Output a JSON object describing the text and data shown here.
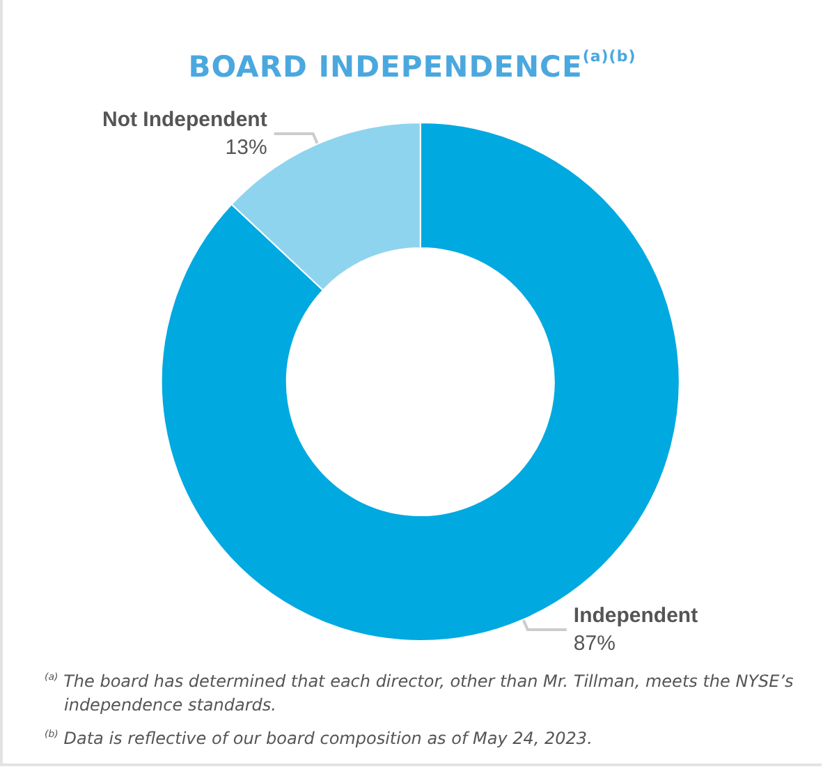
{
  "chart_data": {
    "type": "donut",
    "title": "BOARD INDEPENDENCE$^{(a)(b)}$",
    "categories": [
      "Independent",
      "Not Independent"
    ],
    "values": [
      87,
      13
    ],
    "value_labels": [
      "87%",
      "13%"
    ],
    "colors": [
      "#00a9e0",
      "#8fd4ee"
    ],
    "legend": false,
    "annotations": [
      "$^{(a)}$ The board has determined that each director, other than Mr. Tillman, meets the NYSE’s independence standards.",
      "$^{(b)}$ Data is reflective of our board composition as of May 24, 2023."
    ]
  }
}
